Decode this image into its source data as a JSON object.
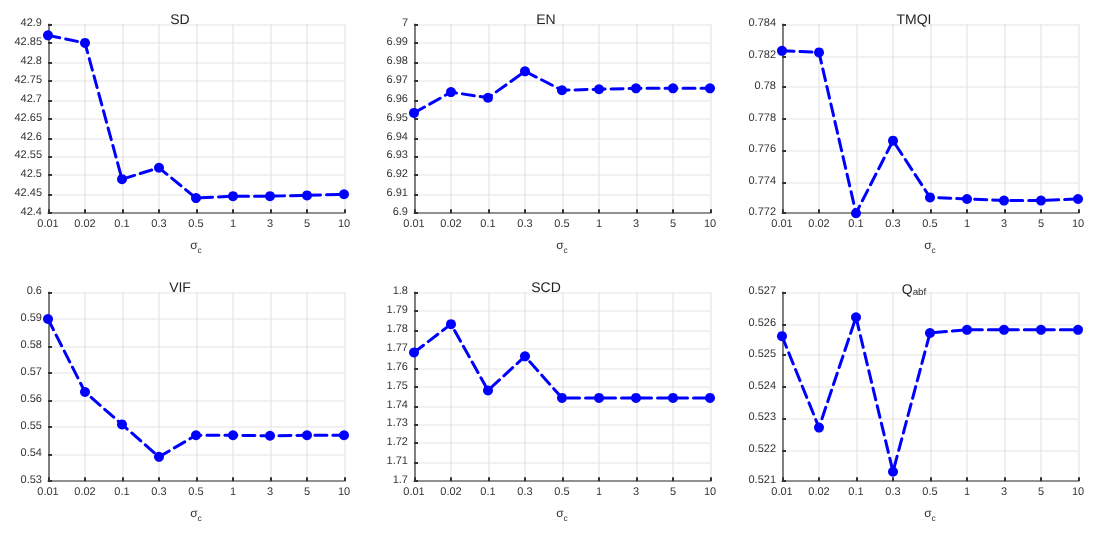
{
  "chart_data": [
    {
      "type": "line",
      "title": "SD",
      "xlabel": "σ$_{c}$",
      "categories": [
        "0.01",
        "0.02",
        "0.1",
        "0.3",
        "0.5",
        "1",
        "3",
        "5",
        "10"
      ],
      "series": [
        {
          "color": "#0000ff",
          "values": [
            42.87,
            42.85,
            42.49,
            42.52,
            42.44,
            42.445,
            42.445,
            42.447,
            42.45
          ]
        }
      ],
      "ylim": [
        42.4,
        42.9
      ],
      "yticks": [
        42.4,
        42.45,
        42.5,
        42.55,
        42.6,
        42.65,
        42.7,
        42.75,
        42.8,
        42.85,
        42.9
      ],
      "grid": true,
      "marker": "circle",
      "line_style": "dashed"
    },
    {
      "type": "line",
      "title": "EN",
      "xlabel": "σ$_{c}$",
      "categories": [
        "0.01",
        "0.02",
        "0.1",
        "0.3",
        "0.5",
        "1",
        "3",
        "5",
        "10"
      ],
      "series": [
        {
          "color": "#0000ff",
          "values": [
            6.953,
            6.964,
            6.961,
            6.975,
            6.965,
            6.9655,
            6.966,
            6.966,
            6.966
          ]
        }
      ],
      "ylim": [
        6.9,
        7
      ],
      "yticks": [
        6.9,
        6.91,
        6.92,
        6.93,
        6.94,
        6.95,
        6.96,
        6.97,
        6.98,
        6.99,
        7
      ],
      "grid": true,
      "marker": "circle",
      "line_style": "dashed"
    },
    {
      "type": "line",
      "title": "TMQI",
      "xlabel": "σ$_{c}$",
      "categories": [
        "0.01",
        "0.02",
        "0.1",
        "0.3",
        "0.5",
        "1",
        "3",
        "5",
        "10"
      ],
      "series": [
        {
          "color": "#0000ff",
          "values": [
            0.7823,
            0.7822,
            0.772,
            0.7766,
            0.773,
            0.7729,
            0.7728,
            0.7728,
            0.7729
          ]
        }
      ],
      "ylim": [
        0.772,
        0.784
      ],
      "yticks": [
        0.772,
        0.774,
        0.776,
        0.778,
        0.78,
        0.782,
        0.784
      ],
      "grid": true,
      "marker": "circle",
      "line_style": "dashed"
    },
    {
      "type": "line",
      "title": "VIF",
      "xlabel": "σ$_{c}$",
      "categories": [
        "0.01",
        "0.02",
        "0.1",
        "0.3",
        "0.5",
        "1",
        "3",
        "5",
        "10"
      ],
      "series": [
        {
          "color": "#0000ff",
          "values": [
            0.59,
            0.563,
            0.551,
            0.539,
            0.547,
            0.547,
            0.5468,
            0.547,
            0.547
          ]
        }
      ],
      "ylim": [
        0.53,
        0.6
      ],
      "yticks": [
        0.53,
        0.54,
        0.55,
        0.56,
        0.57,
        0.58,
        0.59,
        0.6
      ],
      "grid": true,
      "marker": "circle",
      "line_style": "dashed"
    },
    {
      "type": "line",
      "title": "SCD",
      "xlabel": "σ$_{c}$",
      "categories": [
        "0.01",
        "0.02",
        "0.1",
        "0.3",
        "0.5",
        "1",
        "3",
        "5",
        "10"
      ],
      "series": [
        {
          "color": "#0000ff",
          "values": [
            1.768,
            1.783,
            1.748,
            1.766,
            1.744,
            1.744,
            1.744,
            1.744,
            1.744
          ]
        }
      ],
      "ylim": [
        1.7,
        1.8
      ],
      "yticks": [
        1.7,
        1.71,
        1.72,
        1.73,
        1.74,
        1.75,
        1.76,
        1.77,
        1.78,
        1.79,
        1.8
      ],
      "grid": true,
      "marker": "circle",
      "line_style": "dashed"
    },
    {
      "type": "line",
      "title": "Q$_{abf}$",
      "xlabel": "σ$_{c}$",
      "categories": [
        "0.01",
        "0.02",
        "0.1",
        "0.3",
        "0.5",
        "1",
        "3",
        "5",
        "10"
      ],
      "series": [
        {
          "color": "#0000ff",
          "values": [
            0.5256,
            0.5227,
            0.5262,
            0.5213,
            0.5257,
            0.5258,
            0.5258,
            0.5258,
            0.5258
          ]
        }
      ],
      "ylim": [
        0.521,
        0.527
      ],
      "yticks": [
        0.521,
        0.522,
        0.523,
        0.524,
        0.525,
        0.526,
        0.527
      ],
      "grid": true,
      "marker": "circle",
      "line_style": "dashed"
    }
  ]
}
